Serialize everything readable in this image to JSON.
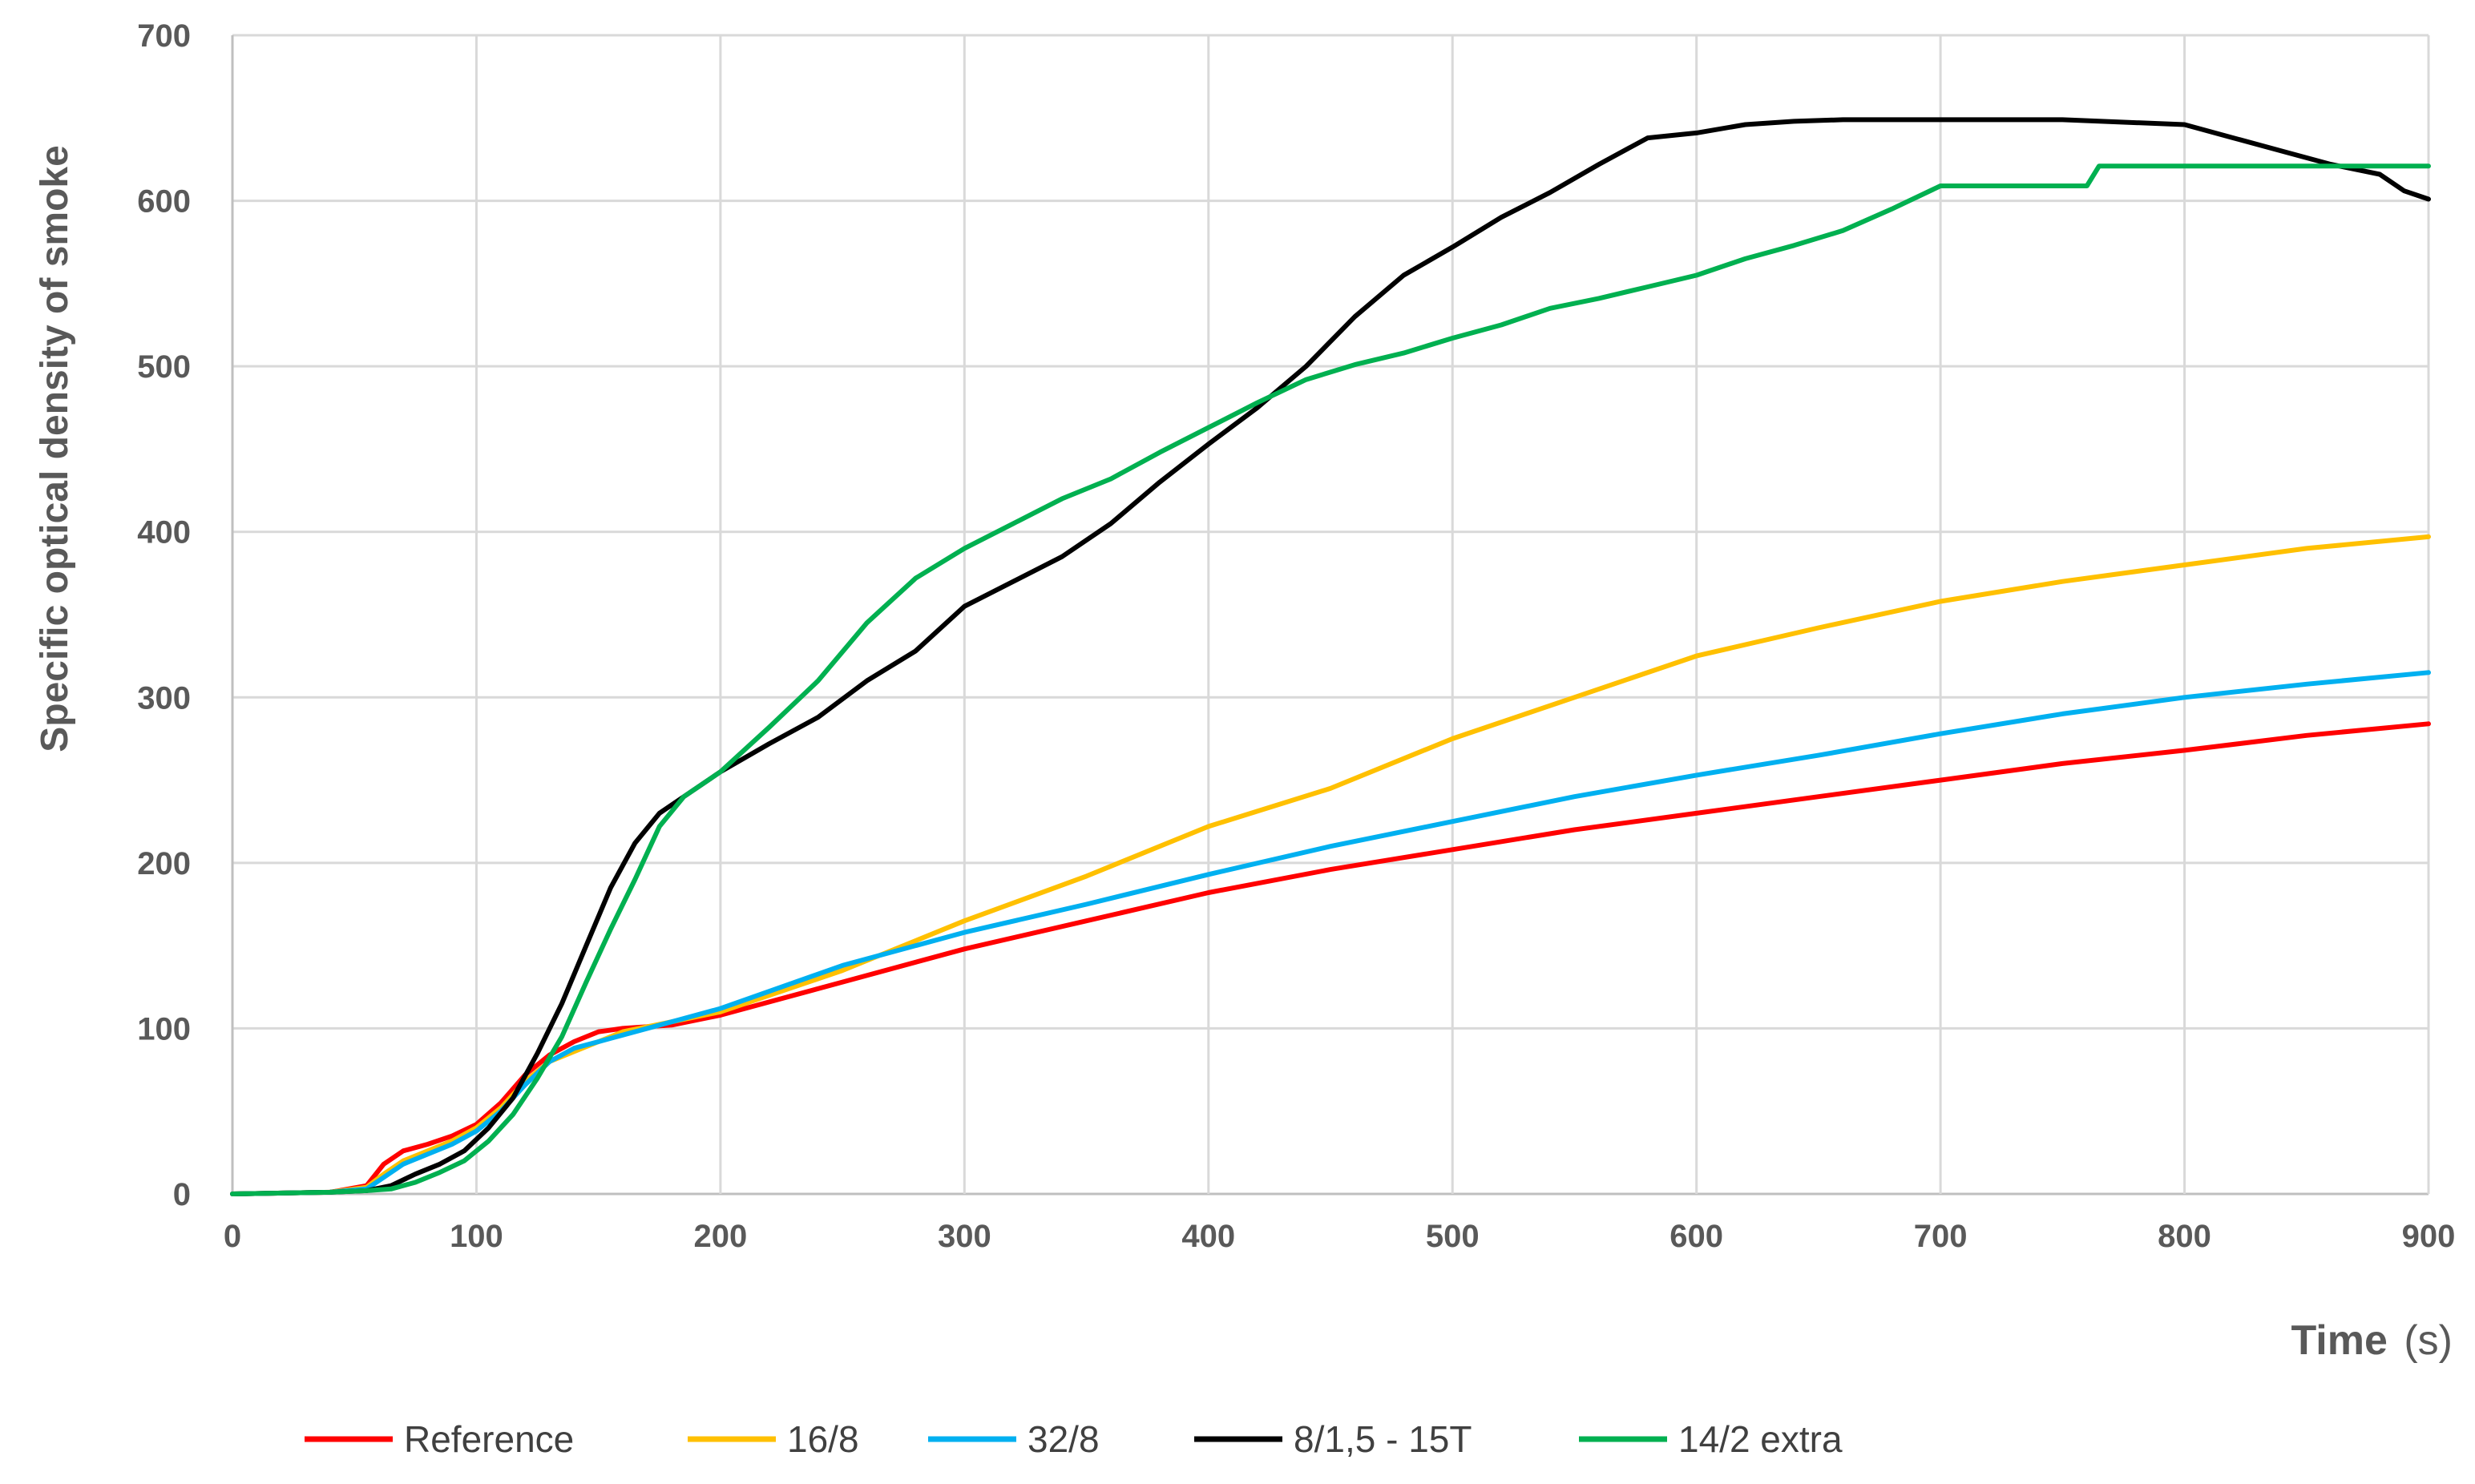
{
  "chart_data": {
    "type": "line",
    "title": "",
    "xlabel": "Time",
    "xlabel_unit": "(s)",
    "ylabel": "Specific optical density of smoke",
    "xlim": [
      0,
      900
    ],
    "ylim": [
      0,
      700
    ],
    "x_ticks": [
      0,
      100,
      200,
      300,
      400,
      500,
      600,
      700,
      800,
      900
    ],
    "y_ticks": [
      0,
      100,
      200,
      300,
      400,
      500,
      600,
      700
    ],
    "grid": true,
    "legend_position": "bottom",
    "series": [
      {
        "name": "Reference",
        "color": "#ff0000",
        "points": [
          [
            0,
            0
          ],
          [
            40,
            1
          ],
          [
            55,
            5
          ],
          [
            62,
            18
          ],
          [
            70,
            26
          ],
          [
            80,
            30
          ],
          [
            90,
            35
          ],
          [
            100,
            42
          ],
          [
            110,
            55
          ],
          [
            120,
            72
          ],
          [
            130,
            84
          ],
          [
            140,
            92
          ],
          [
            150,
            98
          ],
          [
            160,
            100
          ],
          [
            180,
            102
          ],
          [
            200,
            108
          ],
          [
            250,
            128
          ],
          [
            300,
            148
          ],
          [
            350,
            165
          ],
          [
            400,
            182
          ],
          [
            450,
            196
          ],
          [
            500,
            208
          ],
          [
            550,
            220
          ],
          [
            600,
            230
          ],
          [
            650,
            240
          ],
          [
            700,
            250
          ],
          [
            750,
            260
          ],
          [
            800,
            268
          ],
          [
            850,
            277
          ],
          [
            900,
            284
          ]
        ]
      },
      {
        "name": "16/8",
        "color": "#ffc000",
        "points": [
          [
            0,
            0
          ],
          [
            40,
            1
          ],
          [
            55,
            4
          ],
          [
            62,
            12
          ],
          [
            70,
            20
          ],
          [
            80,
            26
          ],
          [
            90,
            32
          ],
          [
            100,
            40
          ],
          [
            110,
            52
          ],
          [
            120,
            68
          ],
          [
            130,
            80
          ],
          [
            140,
            86
          ],
          [
            150,
            92
          ],
          [
            160,
            98
          ],
          [
            180,
            104
          ],
          [
            200,
            110
          ],
          [
            250,
            135
          ],
          [
            300,
            165
          ],
          [
            350,
            192
          ],
          [
            400,
            222
          ],
          [
            450,
            245
          ],
          [
            500,
            275
          ],
          [
            550,
            300
          ],
          [
            600,
            325
          ],
          [
            650,
            342
          ],
          [
            700,
            358
          ],
          [
            750,
            370
          ],
          [
            800,
            380
          ],
          [
            850,
            390
          ],
          [
            900,
            397
          ]
        ]
      },
      {
        "name": "32/8",
        "color": "#00b0f0",
        "points": [
          [
            0,
            0
          ],
          [
            40,
            1
          ],
          [
            55,
            3
          ],
          [
            62,
            10
          ],
          [
            70,
            18
          ],
          [
            80,
            24
          ],
          [
            90,
            30
          ],
          [
            100,
            38
          ],
          [
            110,
            50
          ],
          [
            120,
            66
          ],
          [
            130,
            80
          ],
          [
            140,
            88
          ],
          [
            150,
            92
          ],
          [
            160,
            96
          ],
          [
            180,
            104
          ],
          [
            200,
            112
          ],
          [
            250,
            138
          ],
          [
            300,
            158
          ],
          [
            350,
            175
          ],
          [
            400,
            193
          ],
          [
            450,
            210
          ],
          [
            500,
            225
          ],
          [
            550,
            240
          ],
          [
            600,
            253
          ],
          [
            650,
            265
          ],
          [
            700,
            278
          ],
          [
            750,
            290
          ],
          [
            800,
            300
          ],
          [
            850,
            308
          ],
          [
            900,
            315
          ]
        ]
      },
      {
        "name": "8/1,5 - 15T",
        "color": "#000000",
        "points": [
          [
            0,
            0
          ],
          [
            40,
            1
          ],
          [
            55,
            2
          ],
          [
            65,
            5
          ],
          [
            75,
            12
          ],
          [
            85,
            18
          ],
          [
            95,
            26
          ],
          [
            105,
            40
          ],
          [
            115,
            58
          ],
          [
            125,
            85
          ],
          [
            135,
            115
          ],
          [
            145,
            150
          ],
          [
            155,
            185
          ],
          [
            165,
            212
          ],
          [
            175,
            230
          ],
          [
            185,
            240
          ],
          [
            200,
            255
          ],
          [
            220,
            272
          ],
          [
            240,
            288
          ],
          [
            260,
            310
          ],
          [
            280,
            328
          ],
          [
            300,
            355
          ],
          [
            320,
            370
          ],
          [
            340,
            385
          ],
          [
            360,
            405
          ],
          [
            380,
            430
          ],
          [
            400,
            453
          ],
          [
            420,
            475
          ],
          [
            440,
            500
          ],
          [
            460,
            530
          ],
          [
            480,
            555
          ],
          [
            500,
            572
          ],
          [
            520,
            590
          ],
          [
            540,
            605
          ],
          [
            560,
            622
          ],
          [
            580,
            638
          ],
          [
            600,
            641
          ],
          [
            620,
            646
          ],
          [
            640,
            648
          ],
          [
            660,
            649
          ],
          [
            700,
            649
          ],
          [
            750,
            649
          ],
          [
            800,
            646
          ],
          [
            820,
            638
          ],
          [
            840,
            630
          ],
          [
            860,
            622
          ],
          [
            880,
            616
          ],
          [
            890,
            606
          ],
          [
            900,
            601
          ]
        ]
      },
      {
        "name": "14/2 extra",
        "color": "#00b050",
        "points": [
          [
            0,
            0
          ],
          [
            40,
            1
          ],
          [
            55,
            2
          ],
          [
            65,
            3
          ],
          [
            75,
            7
          ],
          [
            85,
            13
          ],
          [
            95,
            20
          ],
          [
            105,
            32
          ],
          [
            115,
            48
          ],
          [
            125,
            70
          ],
          [
            135,
            95
          ],
          [
            145,
            128
          ],
          [
            155,
            160
          ],
          [
            165,
            190
          ],
          [
            175,
            222
          ],
          [
            185,
            240
          ],
          [
            200,
            255
          ],
          [
            220,
            282
          ],
          [
            240,
            310
          ],
          [
            260,
            345
          ],
          [
            280,
            372
          ],
          [
            300,
            390
          ],
          [
            320,
            405
          ],
          [
            340,
            420
          ],
          [
            360,
            432
          ],
          [
            380,
            448
          ],
          [
            400,
            463
          ],
          [
            420,
            478
          ],
          [
            440,
            492
          ],
          [
            460,
            501
          ],
          [
            480,
            508
          ],
          [
            500,
            517
          ],
          [
            520,
            525
          ],
          [
            540,
            535
          ],
          [
            560,
            541
          ],
          [
            580,
            548
          ],
          [
            600,
            555
          ],
          [
            620,
            565
          ],
          [
            640,
            573
          ],
          [
            660,
            582
          ],
          [
            680,
            595
          ],
          [
            700,
            609
          ],
          [
            720,
            609
          ],
          [
            740,
            609
          ],
          [
            760,
            609
          ],
          [
            765,
            621
          ],
          [
            800,
            621
          ],
          [
            850,
            621
          ],
          [
            900,
            621
          ]
        ]
      }
    ]
  }
}
